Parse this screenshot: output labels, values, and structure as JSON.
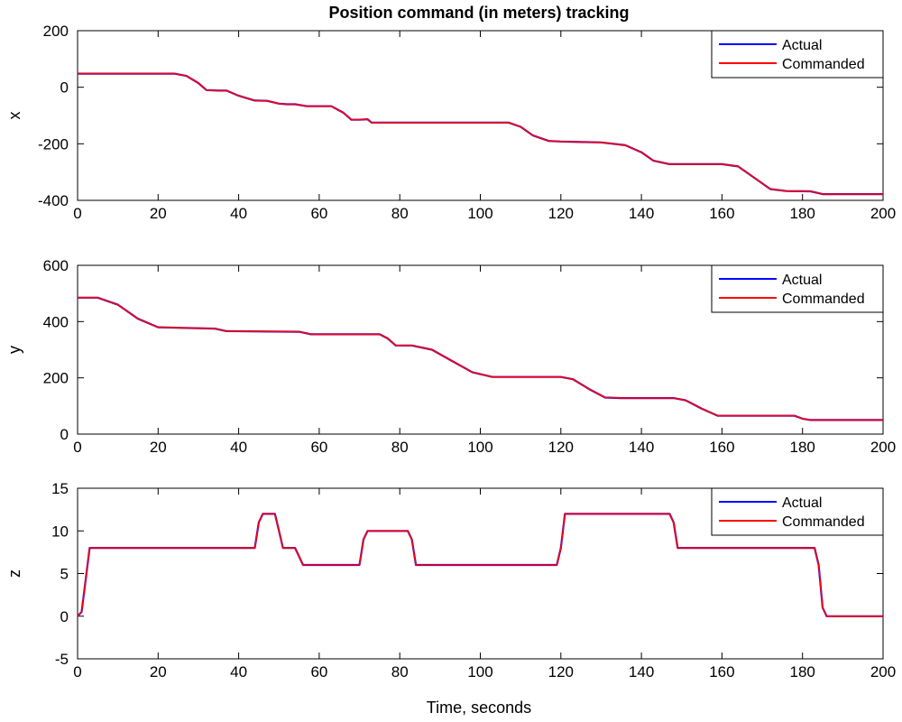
{
  "figure": {
    "title": "Position command (in meters) tracking",
    "xlabel": "Time, seconds"
  },
  "chart_data": [
    {
      "type": "line",
      "title": "Position command (in meters) tracking",
      "xlabel": "",
      "ylabel": "x",
      "xlim": [
        0,
        200
      ],
      "ylim": [
        -400,
        200
      ],
      "xticks": [
        0,
        20,
        40,
        60,
        80,
        100,
        120,
        140,
        160,
        180,
        200
      ],
      "yticks": [
        -400,
        -200,
        0,
        200
      ],
      "grid": false,
      "legend": "top-right",
      "series": [
        {
          "name": "Actual",
          "color": "#0000ff",
          "x": [
            0,
            24,
            27,
            30,
            32,
            35,
            37,
            40,
            44,
            47,
            50,
            52,
            54,
            57,
            60,
            63,
            66,
            68,
            70,
            72,
            73,
            76,
            100,
            107,
            110,
            113,
            117,
            120,
            130,
            136,
            140,
            143,
            147,
            160,
            164,
            168,
            172,
            176,
            182,
            185,
            188,
            200
          ],
          "y": [
            48,
            48,
            40,
            15,
            -10,
            -12,
            -12,
            -30,
            -47,
            -48,
            -58,
            -60,
            -60,
            -67,
            -67,
            -67,
            -90,
            -115,
            -115,
            -113,
            -125,
            -125,
            -125,
            -125,
            -140,
            -170,
            -190,
            -192,
            -195,
            -205,
            -230,
            -260,
            -272,
            -272,
            -280,
            -320,
            -360,
            -367,
            -368,
            -378,
            -378,
            -378
          ]
        },
        {
          "name": "Commanded",
          "color": "#ff0000",
          "x": [
            0,
            24,
            27,
            30,
            32,
            35,
            37,
            40,
            44,
            47,
            50,
            52,
            54,
            57,
            60,
            63,
            66,
            68,
            70,
            72,
            73,
            76,
            100,
            107,
            110,
            113,
            117,
            120,
            130,
            136,
            140,
            143,
            147,
            160,
            164,
            168,
            172,
            176,
            182,
            185,
            188,
            200
          ],
          "y": [
            48,
            48,
            40,
            15,
            -10,
            -12,
            -12,
            -30,
            -47,
            -48,
            -58,
            -60,
            -60,
            -67,
            -67,
            -67,
            -90,
            -115,
            -115,
            -113,
            -125,
            -125,
            -125,
            -125,
            -140,
            -170,
            -190,
            -192,
            -195,
            -205,
            -230,
            -260,
            -272,
            -272,
            -280,
            -320,
            -360,
            -367,
            -368,
            -378,
            -378,
            -378
          ]
        }
      ]
    },
    {
      "type": "line",
      "title": "",
      "xlabel": "",
      "ylabel": "y",
      "xlim": [
        0,
        200
      ],
      "ylim": [
        0,
        600
      ],
      "xticks": [
        0,
        20,
        40,
        60,
        80,
        100,
        120,
        140,
        160,
        180,
        200
      ],
      "yticks": [
        0,
        200,
        400,
        600
      ],
      "grid": false,
      "legend": "top-right",
      "series": [
        {
          "name": "Actual",
          "color": "#0000ff",
          "x": [
            0,
            5,
            10,
            15,
            20,
            25,
            34,
            37,
            55,
            58,
            75,
            77,
            79,
            83,
            88,
            93,
            98,
            103,
            120,
            123,
            127,
            131,
            135,
            148,
            151,
            155,
            159,
            162,
            178,
            180,
            182,
            200
          ],
          "y": [
            485,
            485,
            460,
            410,
            380,
            378,
            375,
            366,
            364,
            355,
            355,
            340,
            315,
            315,
            300,
            260,
            220,
            203,
            203,
            195,
            160,
            130,
            128,
            128,
            120,
            90,
            65,
            65,
            65,
            55,
            50,
            50
          ]
        },
        {
          "name": "Commanded",
          "color": "#ff0000",
          "x": [
            0,
            5,
            10,
            15,
            20,
            25,
            34,
            37,
            55,
            58,
            75,
            77,
            79,
            83,
            88,
            93,
            98,
            103,
            120,
            123,
            127,
            131,
            135,
            148,
            151,
            155,
            159,
            162,
            178,
            180,
            182,
            200
          ],
          "y": [
            485,
            485,
            460,
            410,
            380,
            378,
            375,
            366,
            364,
            355,
            355,
            340,
            315,
            315,
            300,
            260,
            220,
            203,
            203,
            195,
            160,
            130,
            128,
            128,
            120,
            90,
            65,
            65,
            65,
            55,
            50,
            50
          ]
        }
      ]
    },
    {
      "type": "line",
      "title": "",
      "xlabel": "Time, seconds",
      "ylabel": "z",
      "xlim": [
        0,
        200
      ],
      "ylim": [
        -5,
        15
      ],
      "xticks": [
        0,
        20,
        40,
        60,
        80,
        100,
        120,
        140,
        160,
        180,
        200
      ],
      "yticks": [
        -5,
        0,
        5,
        10,
        15
      ],
      "grid": false,
      "legend": "top-right",
      "series": [
        {
          "name": "Actual",
          "color": "#0000ff",
          "x": [
            0,
            1,
            3,
            44,
            45,
            46,
            49,
            50,
            51,
            54,
            55,
            56,
            66,
            70,
            71,
            72,
            82,
            83,
            84,
            119,
            120,
            121,
            147,
            148,
            149,
            183,
            184,
            185,
            186,
            200
          ],
          "y": [
            0,
            0.5,
            8,
            8,
            11,
            12,
            12,
            10,
            8,
            8,
            7,
            6,
            6,
            6,
            9,
            10,
            10,
            9,
            6,
            6,
            8,
            12,
            12,
            11,
            8,
            8,
            6,
            1,
            0,
            0
          ]
        },
        {
          "name": "Commanded",
          "color": "#ff0000",
          "x": [
            0,
            1,
            3,
            44,
            45,
            46,
            49,
            50,
            51,
            54,
            55,
            56,
            66,
            70,
            71,
            72,
            82,
            83,
            84,
            119,
            120,
            121,
            147,
            148,
            149,
            183,
            184,
            185,
            186,
            200
          ],
          "y": [
            0,
            0.5,
            8,
            8,
            11,
            12,
            12,
            10,
            8,
            8,
            7,
            6,
            6,
            6,
            9,
            10,
            10,
            9,
            6,
            6,
            8,
            12,
            12,
            11,
            8,
            8,
            6,
            1,
            0,
            0
          ]
        }
      ]
    }
  ]
}
